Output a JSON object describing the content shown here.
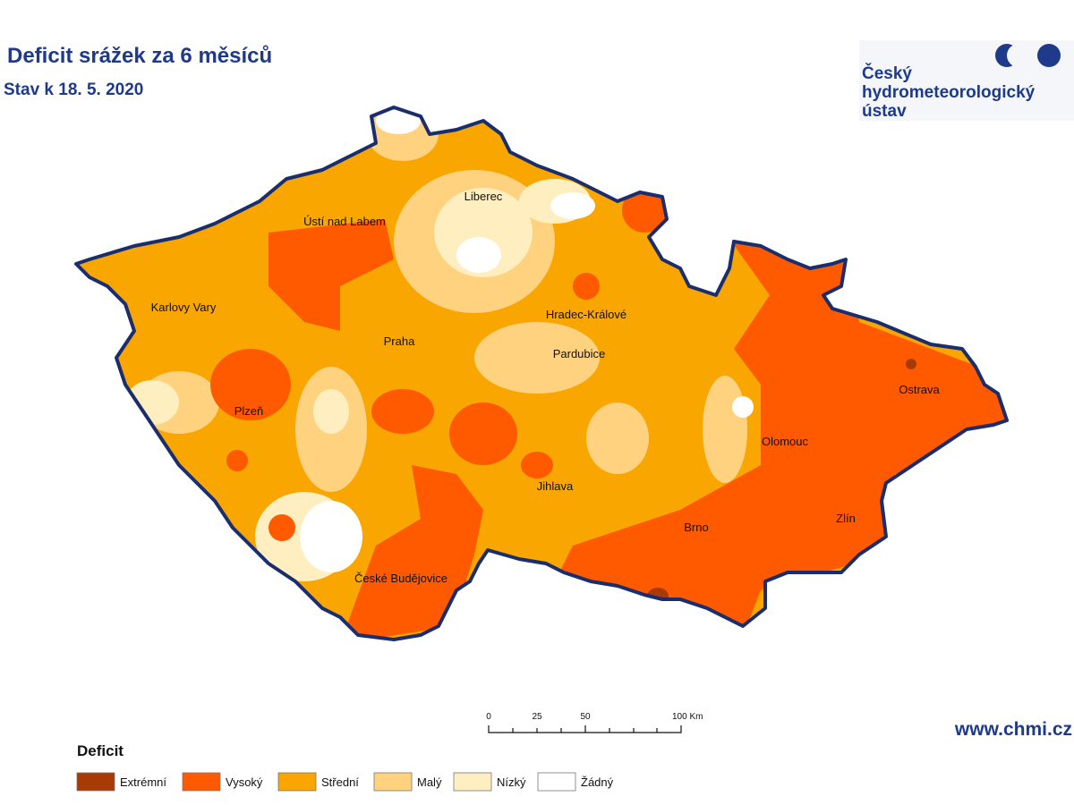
{
  "header": {
    "title": "Deficit srážek za 6 měsíců",
    "subtitle": "Stav k 18. 5. 2020"
  },
  "logo": {
    "lines": [
      "Český",
      "hydrometeorologický",
      "ústav"
    ]
  },
  "map": {
    "cities": [
      "Ústí nad Labem",
      "Liberec",
      "Karlovy Vary",
      "Hradec-Králové",
      "Praha",
      "Pardubice",
      "Ostrava",
      "Plzeň",
      "Olomouc",
      "Jihlava",
      "Zlín",
      "Brno",
      "České Budějovice"
    ]
  },
  "scale": {
    "labels": [
      "0",
      "25",
      "50",
      "100 Km"
    ]
  },
  "legend": {
    "title": "Deficit",
    "items": [
      {
        "label": "Extrémní",
        "color": "#a83a05"
      },
      {
        "label": "Vysoký",
        "color": "#ff5a00"
      },
      {
        "label": "Střední",
        "color": "#f9a600"
      },
      {
        "label": "Malý",
        "color": "#ffd27f"
      },
      {
        "label": "Nízký",
        "color": "#ffeec0"
      },
      {
        "label": "Žádný",
        "color": "#ffffff"
      }
    ]
  },
  "footer": {
    "url": "www.chmi.cz"
  }
}
